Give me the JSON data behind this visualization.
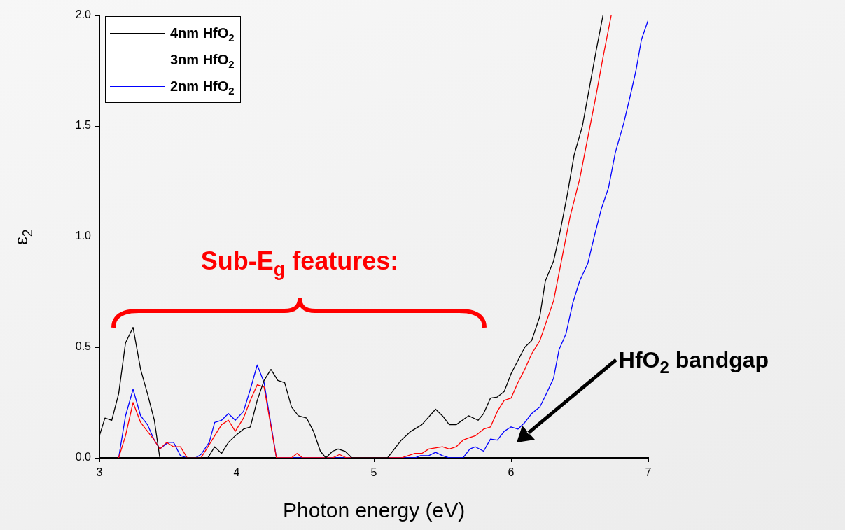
{
  "chart_data": {
    "type": "line",
    "xlabel": "Photon energy (eV)",
    "ylabel": "ε$_{2}$",
    "xlim": [
      3,
      7
    ],
    "ylim": [
      0,
      2
    ],
    "xticks": [
      3,
      4,
      5,
      6,
      7
    ],
    "yticks": [
      {
        "value": 0,
        "label": "0.0"
      },
      0.5,
      {
        "value": 1,
        "label": "1.0"
      },
      1.5,
      {
        "value": 2,
        "label": "2.0"
      }
    ],
    "grid": false,
    "legend": "top left",
    "marker": "none",
    "line_style": "solid",
    "annotations": [
      "Sub-E$_{g}$ features:",
      "HfO$_{2}$ bandgap"
    ],
    "series": [
      {
        "name": "4nm HfO$_{2}$",
        "color": "#000000",
        "x": [
          3.0,
          3.04,
          3.09,
          3.14,
          3.19,
          3.245,
          3.3,
          3.35,
          3.4,
          3.44,
          3.79,
          3.84,
          3.89,
          3.94,
          3.99,
          4.05,
          4.1,
          4.15,
          4.2,
          4.25,
          4.3,
          4.35,
          4.4,
          4.45,
          4.51,
          4.56,
          4.61,
          4.65,
          4.7,
          4.74,
          4.79,
          4.84,
          5.1,
          5.2,
          5.27,
          5.35,
          5.45,
          5.5,
          5.55,
          5.6,
          5.69,
          5.76,
          5.8,
          5.85,
          5.9,
          5.95,
          6.0,
          6.05,
          6.1,
          6.15,
          6.21,
          6.25,
          6.31,
          6.36,
          6.41,
          6.46,
          6.52,
          6.57,
          6.62,
          6.67
        ],
        "values": [
          0.1,
          0.18,
          0.17,
          0.29,
          0.52,
          0.59,
          0.4,
          0.29,
          0.17,
          0,
          0,
          0.05,
          0.02,
          0.07,
          0.1,
          0.13,
          0.14,
          0.26,
          0.35,
          0.4,
          0.35,
          0.34,
          0.23,
          0.19,
          0.18,
          0.12,
          0.03,
          0,
          0.03,
          0.04,
          0.03,
          0,
          0,
          0.08,
          0.12,
          0.15,
          0.22,
          0.19,
          0.15,
          0.15,
          0.19,
          0.17,
          0.2,
          0.27,
          0.275,
          0.3,
          0.38,
          0.44,
          0.5,
          0.53,
          0.64,
          0.8,
          0.89,
          1.03,
          1.19,
          1.37,
          1.5,
          1.67,
          1.84,
          2.0
        ]
      },
      {
        "name": "3nm HfO$_{2}$",
        "color": "#ff0000",
        "x": [
          3.14,
          3.19,
          3.245,
          3.3,
          3.35,
          3.4,
          3.44,
          3.49,
          3.54,
          3.59,
          3.64,
          3.74,
          3.8,
          3.84,
          3.89,
          3.94,
          3.99,
          4.05,
          4.1,
          4.15,
          4.2,
          4.29,
          4.4,
          4.44,
          4.48,
          4.7,
          4.75,
          4.8,
          5.2,
          5.3,
          5.35,
          5.4,
          5.5,
          5.55,
          5.6,
          5.65,
          5.69,
          5.74,
          5.8,
          5.85,
          5.9,
          5.95,
          6.0,
          6.05,
          6.1,
          6.15,
          6.21,
          6.31,
          6.37,
          6.43,
          6.5,
          6.56,
          6.62,
          6.67,
          6.73
        ],
        "values": [
          0,
          0.1,
          0.25,
          0.16,
          0.12,
          0.08,
          0.04,
          0.07,
          0.05,
          0.05,
          0,
          0,
          0.06,
          0.1,
          0.15,
          0.17,
          0.12,
          0.18,
          0.26,
          0.33,
          0.32,
          0,
          0,
          0.02,
          0,
          0,
          0.015,
          0,
          0,
          0.02,
          0.02,
          0.04,
          0.05,
          0.04,
          0.05,
          0.08,
          0.09,
          0.1,
          0.13,
          0.14,
          0.21,
          0.26,
          0.27,
          0.34,
          0.4,
          0.47,
          0.53,
          0.71,
          0.9,
          1.09,
          1.26,
          1.45,
          1.64,
          1.81,
          2.0
        ]
      },
      {
        "name": "2nm HfO$_{2}$",
        "color": "#0000ff",
        "x": [
          3.14,
          3.19,
          3.245,
          3.3,
          3.35,
          3.4,
          3.44,
          3.5,
          3.54,
          3.59,
          3.64,
          3.7,
          3.74,
          3.8,
          3.84,
          3.89,
          3.94,
          3.99,
          4.05,
          4.1,
          4.15,
          4.2,
          4.29,
          5.3,
          5.34,
          5.4,
          5.45,
          5.5,
          5.55,
          5.65,
          5.7,
          5.74,
          5.8,
          5.85,
          5.9,
          5.95,
          6.0,
          6.05,
          6.1,
          6.15,
          6.21,
          6.25,
          6.31,
          6.35,
          6.4,
          6.45,
          6.5,
          6.56,
          6.61,
          6.66,
          6.71,
          6.76,
          6.82,
          6.87,
          6.91,
          6.95,
          7.0
        ],
        "values": [
          0,
          0.19,
          0.31,
          0.19,
          0.15,
          0.08,
          0.04,
          0.07,
          0.07,
          0.01,
          0,
          0,
          0.015,
          0.07,
          0.16,
          0.17,
          0.2,
          0.17,
          0.21,
          0.31,
          0.42,
          0.34,
          0,
          0,
          0.01,
          0.01,
          0.025,
          0.01,
          0,
          0,
          0.04,
          0.05,
          0.03,
          0.085,
          0.08,
          0.12,
          0.14,
          0.13,
          0.16,
          0.2,
          0.23,
          0.28,
          0.36,
          0.49,
          0.56,
          0.7,
          0.8,
          0.88,
          1.01,
          1.13,
          1.22,
          1.38,
          1.51,
          1.64,
          1.75,
          1.89,
          1.98
        ]
      }
    ]
  }
}
